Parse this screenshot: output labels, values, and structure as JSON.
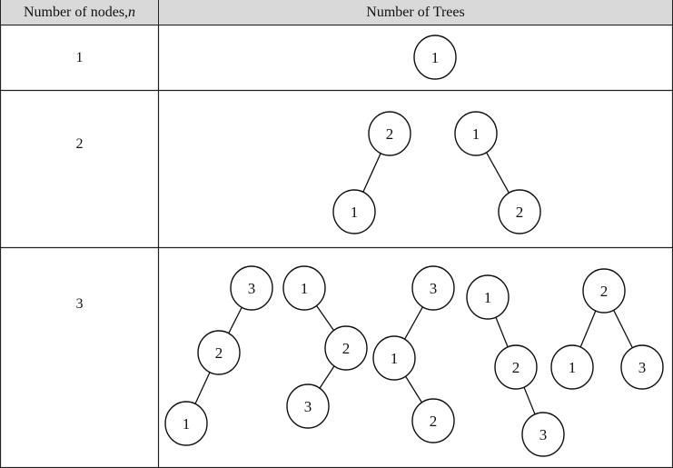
{
  "header": {
    "col1_prefix": "Number of nodes, ",
    "col1_var": "n",
    "col2": "Number of Trees"
  },
  "rows": [
    {
      "n": "1"
    },
    {
      "n": "2"
    },
    {
      "n": "3"
    }
  ],
  "trees": {
    "n1": [
      {
        "nodes": [
          "1"
        ]
      }
    ],
    "n2": [
      {
        "nodes": [
          "2",
          "1"
        ]
      },
      {
        "nodes": [
          "1",
          "2"
        ]
      }
    ],
    "n3": [
      {
        "nodes": [
          "3",
          "2",
          "1"
        ]
      },
      {
        "nodes": [
          "1",
          "2",
          "3"
        ]
      },
      {
        "nodes": [
          "3",
          "1",
          "2"
        ]
      },
      {
        "nodes": [
          "1",
          "2",
          "3"
        ]
      },
      {
        "nodes": [
          "2",
          "1",
          "3"
        ]
      }
    ]
  }
}
